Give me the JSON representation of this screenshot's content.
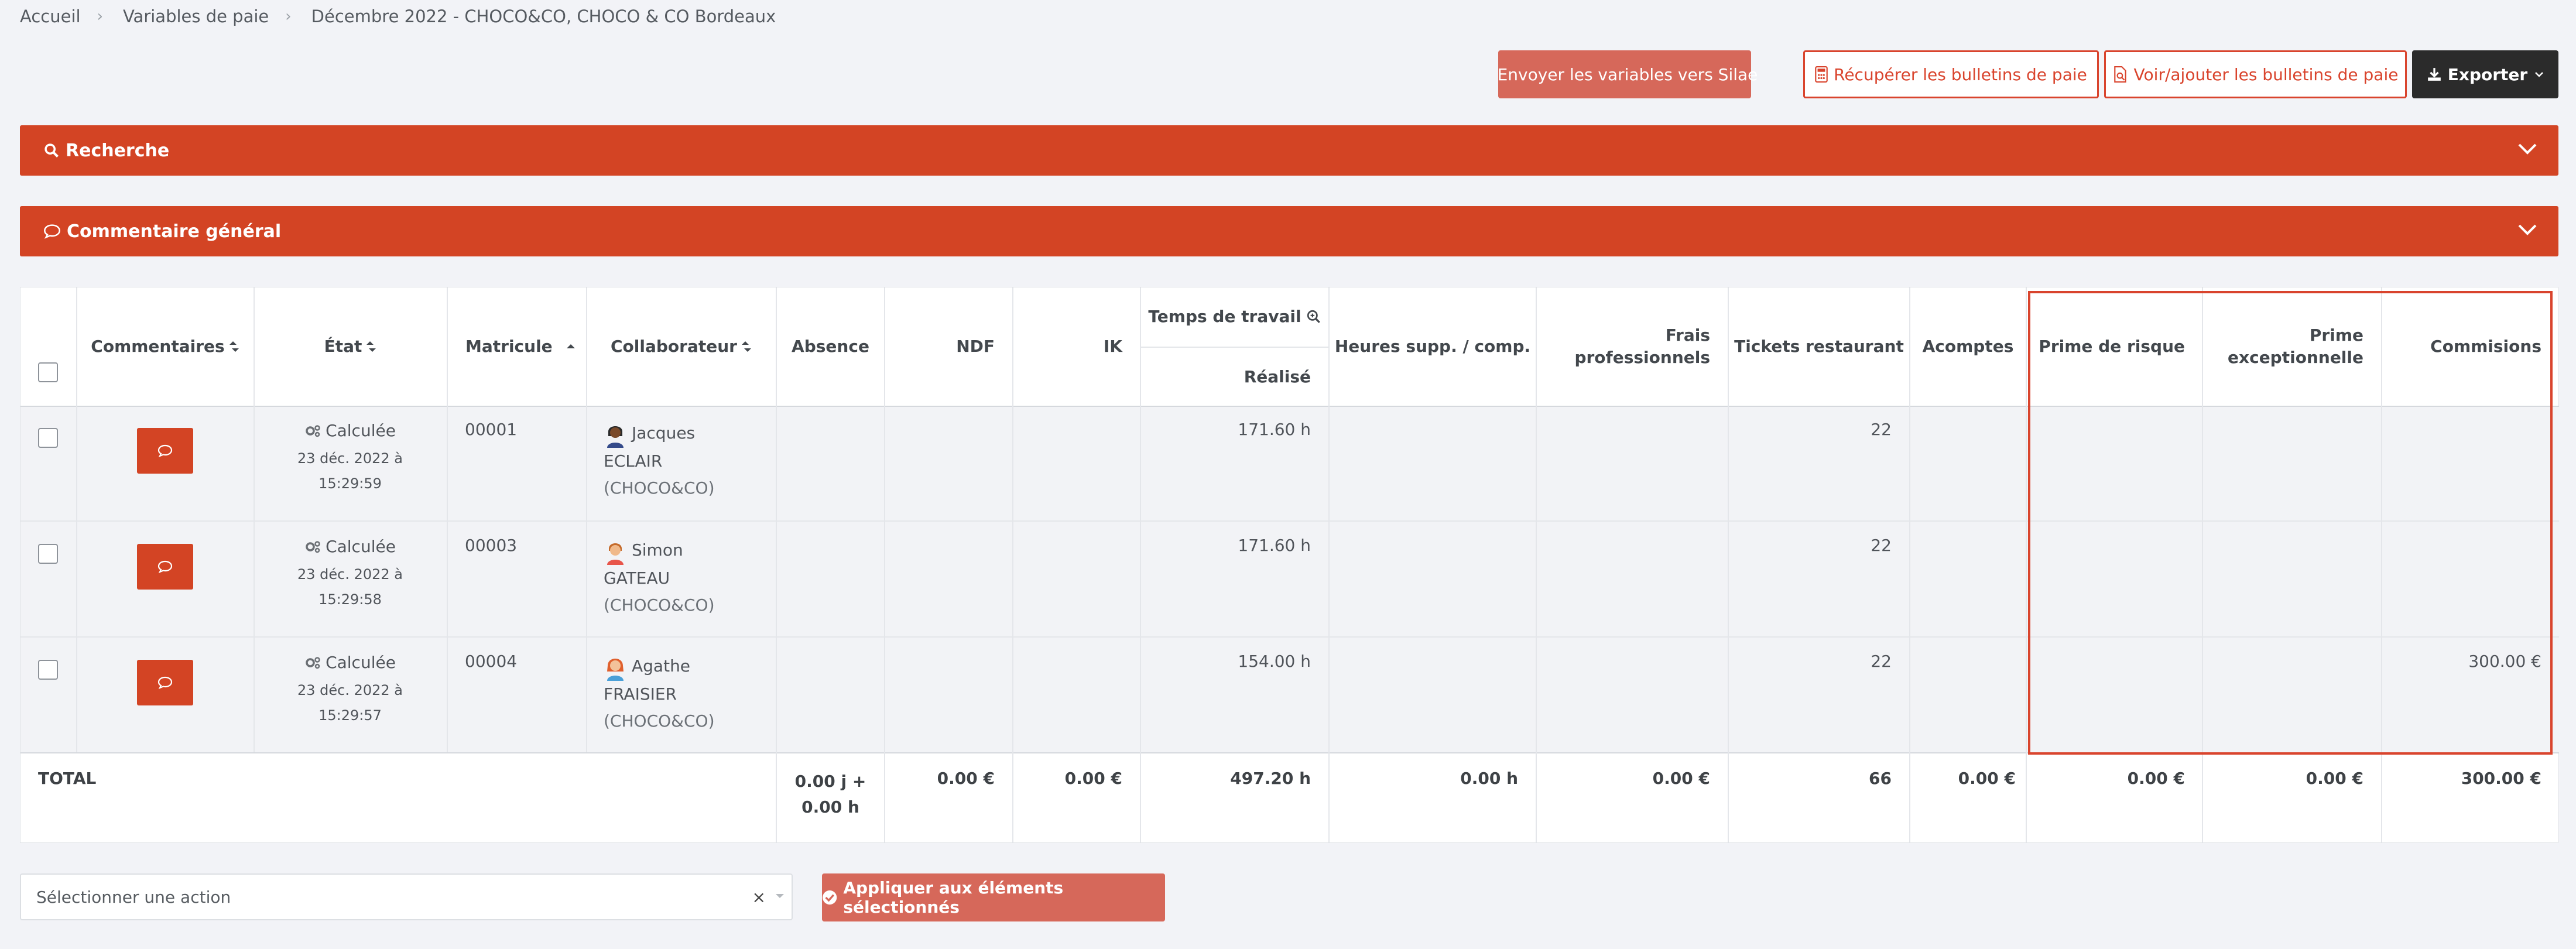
{
  "breadcrumb": [
    "Accueil",
    "Variables de paie",
    "Décembre 2022 - CHOCO&CO, CHOCO & CO Bordeaux"
  ],
  "actions": {
    "send": "Envoyer les variables vers Silae",
    "get": "Récupérer les bulletins de paie",
    "view": "Voir/ajouter les bulletins de paie",
    "export": "Exporter"
  },
  "panels": {
    "search": "Recherche",
    "comment": "Commentaire général"
  },
  "table": {
    "headers": {
      "comments": "Commentaires",
      "state": "État",
      "matricule": "Matricule",
      "collaborator": "Collaborateur",
      "absence": "Absence",
      "ndf": "NDF",
      "ik": "IK",
      "work_time": "Temps de travail",
      "realized": "Réalisé",
      "overtime": "Heures supp. / comp.",
      "expenses_line1": "Frais",
      "expenses_line2": "professionnels",
      "tickets": "Tickets restaurant",
      "advances": "Acomptes",
      "risk": "Prime de risque",
      "exceptional_line1": "Prime",
      "exceptional_line2": "exceptionnelle",
      "commissions": "Commisions"
    },
    "rows": [
      {
        "state": "Calculée",
        "date": "23 déc. 2022 à",
        "time": "15:29:59",
        "matricule": "00001",
        "first": "Jacques",
        "last": "ECLAIR",
        "company": "(CHOCO&CO)",
        "realized": "171.60 h",
        "tickets": "22",
        "commissions": ""
      },
      {
        "state": "Calculée",
        "date": "23 déc. 2022 à",
        "time": "15:29:58",
        "matricule": "00003",
        "first": "Simon",
        "last": "GATEAU",
        "company": "(CHOCO&CO)",
        "realized": "171.60 h",
        "tickets": "22",
        "commissions": ""
      },
      {
        "state": "Calculée",
        "date": "23 déc. 2022 à",
        "time": "15:29:57",
        "matricule": "00004",
        "first": "Agathe",
        "last": "FRAISIER",
        "company": "(CHOCO&CO)",
        "realized": "154.00 h",
        "tickets": "22",
        "commissions": "300.00 €"
      }
    ],
    "total": {
      "label": "TOTAL",
      "absence_line1": "0.00 j +",
      "absence_line2": "0.00 h",
      "ndf": "0.00 €",
      "ik": "0.00 €",
      "realized": "497.20 h",
      "overtime": "0.00 h",
      "expenses": "0.00 €",
      "tickets": "66",
      "advances": "0.00 €",
      "risk": "0.00 €",
      "exceptional": "0.00 €",
      "commissions": "300.00 €"
    }
  },
  "bottom": {
    "select_placeholder": "Sélectionner une action",
    "clear": "×",
    "apply": "Appliquer aux éléments sélectionnés"
  },
  "colors": {
    "accent": "#d34424",
    "accent_light": "#d6685a",
    "dark": "#2b2b2b",
    "highlight": "#d9442d"
  }
}
